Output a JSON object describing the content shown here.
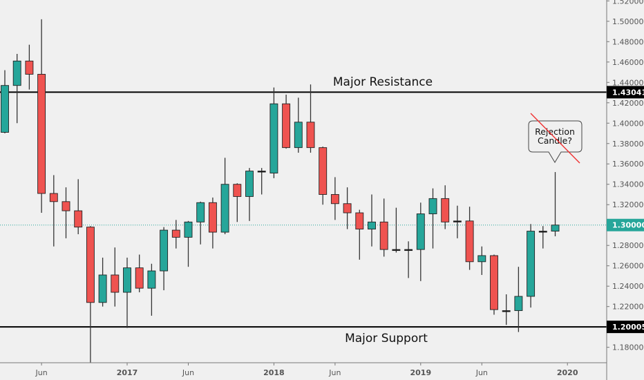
{
  "chart_data": {
    "type": "candlestick",
    "title": "",
    "xlabel": "",
    "ylabel": "",
    "ylim": [
      1.155,
      1.52
    ],
    "grid": false,
    "colors": {
      "up": "#26a69a",
      "down": "#ef5350",
      "wick": "#333333",
      "background": "#f0f0f0"
    },
    "x_ticks": [
      "Jun",
      "2017",
      "Jun",
      "2018",
      "Jun",
      "2019",
      "Jun",
      "2020"
    ],
    "x_tick_months": [
      3,
      10,
      15,
      22,
      27,
      34,
      39,
      46
    ],
    "y_ticks": [
      "1.18000",
      "1.22000",
      "1.24000",
      "1.26000",
      "1.28000",
      "1.32000",
      "1.34000",
      "1.36000",
      "1.38000",
      "1.40000",
      "1.42000",
      "1.44000",
      "1.46000",
      "1.48000",
      "1.50000",
      "1.52000"
    ],
    "dates": [
      "2016-03",
      "2016-04",
      "2016-05",
      "2016-06",
      "2016-07",
      "2016-08",
      "2016-09",
      "2016-10",
      "2016-11",
      "2016-12",
      "2017-01",
      "2017-02",
      "2017-03",
      "2017-04",
      "2017-05",
      "2017-06",
      "2017-07",
      "2017-08",
      "2017-09",
      "2017-10",
      "2017-11",
      "2017-12",
      "2018-01",
      "2018-02",
      "2018-03",
      "2018-04",
      "2018-05",
      "2018-06",
      "2018-07",
      "2018-08",
      "2018-09",
      "2018-10",
      "2018-11",
      "2018-12",
      "2019-01",
      "2019-02",
      "2019-03",
      "2019-04",
      "2019-05",
      "2019-06",
      "2019-07",
      "2019-08",
      "2019-09",
      "2019-10",
      "2019-11",
      "2019-12"
    ],
    "ohlc": [
      [
        1.391,
        1.452,
        1.39,
        1.437
      ],
      [
        1.437,
        1.468,
        1.4,
        1.461
      ],
      [
        1.461,
        1.477,
        1.433,
        1.448
      ],
      [
        1.448,
        1.502,
        1.312,
        1.331
      ],
      [
        1.331,
        1.349,
        1.279,
        1.323
      ],
      [
        1.323,
        1.337,
        1.287,
        1.314
      ],
      [
        1.314,
        1.345,
        1.291,
        1.298
      ],
      [
        1.298,
        1.299,
        1.149,
        1.224
      ],
      [
        1.224,
        1.268,
        1.22,
        1.251
      ],
      [
        1.251,
        1.278,
        1.22,
        1.234
      ],
      [
        1.234,
        1.268,
        1.199,
        1.258
      ],
      [
        1.258,
        1.271,
        1.234,
        1.238
      ],
      [
        1.238,
        1.262,
        1.211,
        1.255
      ],
      [
        1.255,
        1.298,
        1.236,
        1.295
      ],
      [
        1.295,
        1.305,
        1.277,
        1.288
      ],
      [
        1.288,
        1.304,
        1.259,
        1.303
      ],
      [
        1.303,
        1.323,
        1.281,
        1.322
      ],
      [
        1.322,
        1.327,
        1.277,
        1.293
      ],
      [
        1.293,
        1.366,
        1.291,
        1.34
      ],
      [
        1.34,
        1.341,
        1.303,
        1.328
      ],
      [
        1.328,
        1.356,
        1.304,
        1.353
      ],
      [
        1.352,
        1.356,
        1.33,
        1.353
      ],
      [
        1.351,
        1.435,
        1.346,
        1.419
      ],
      [
        1.419,
        1.428,
        1.375,
        1.376
      ],
      [
        1.376,
        1.425,
        1.371,
        1.401
      ],
      [
        1.401,
        1.438,
        1.371,
        1.376
      ],
      [
        1.376,
        1.377,
        1.32,
        1.33
      ],
      [
        1.33,
        1.347,
        1.305,
        1.321
      ],
      [
        1.321,
        1.337,
        1.296,
        1.312
      ],
      [
        1.312,
        1.315,
        1.266,
        1.296
      ],
      [
        1.296,
        1.33,
        1.279,
        1.303
      ],
      [
        1.303,
        1.326,
        1.269,
        1.276
      ],
      [
        1.276,
        1.317,
        1.273,
        1.275
      ],
      [
        1.275,
        1.284,
        1.248,
        1.276
      ],
      [
        1.276,
        1.322,
        1.245,
        1.311
      ],
      [
        1.311,
        1.336,
        1.277,
        1.326
      ],
      [
        1.326,
        1.339,
        1.296,
        1.303
      ],
      [
        1.303,
        1.319,
        1.287,
        1.304
      ],
      [
        1.304,
        1.318,
        1.256,
        1.264
      ],
      [
        1.264,
        1.279,
        1.251,
        1.27
      ],
      [
        1.27,
        1.271,
        1.212,
        1.217
      ],
      [
        1.216,
        1.232,
        1.202,
        1.216
      ],
      [
        1.216,
        1.259,
        1.195,
        1.23
      ],
      [
        1.23,
        1.301,
        1.219,
        1.294
      ],
      [
        1.294,
        1.299,
        1.277,
        1.294
      ],
      [
        1.294,
        1.352,
        1.289,
        1.3
      ]
    ],
    "horizontal_lines": [
      {
        "name": "resistance",
        "price": 1.43041,
        "label": "1.43041",
        "color": "#000000"
      },
      {
        "name": "support",
        "price": 1.20005,
        "label": "1.20005",
        "color": "#000000"
      },
      {
        "name": "last-price",
        "price": 1.3,
        "label": "1.30000",
        "color": "#26a69a",
        "style": "dotted"
      }
    ],
    "annotations": {
      "resistance_label": "Major Resistance",
      "support_label": "Major Support",
      "callout_line1": "Rejection",
      "callout_line2": "Candle?"
    }
  }
}
